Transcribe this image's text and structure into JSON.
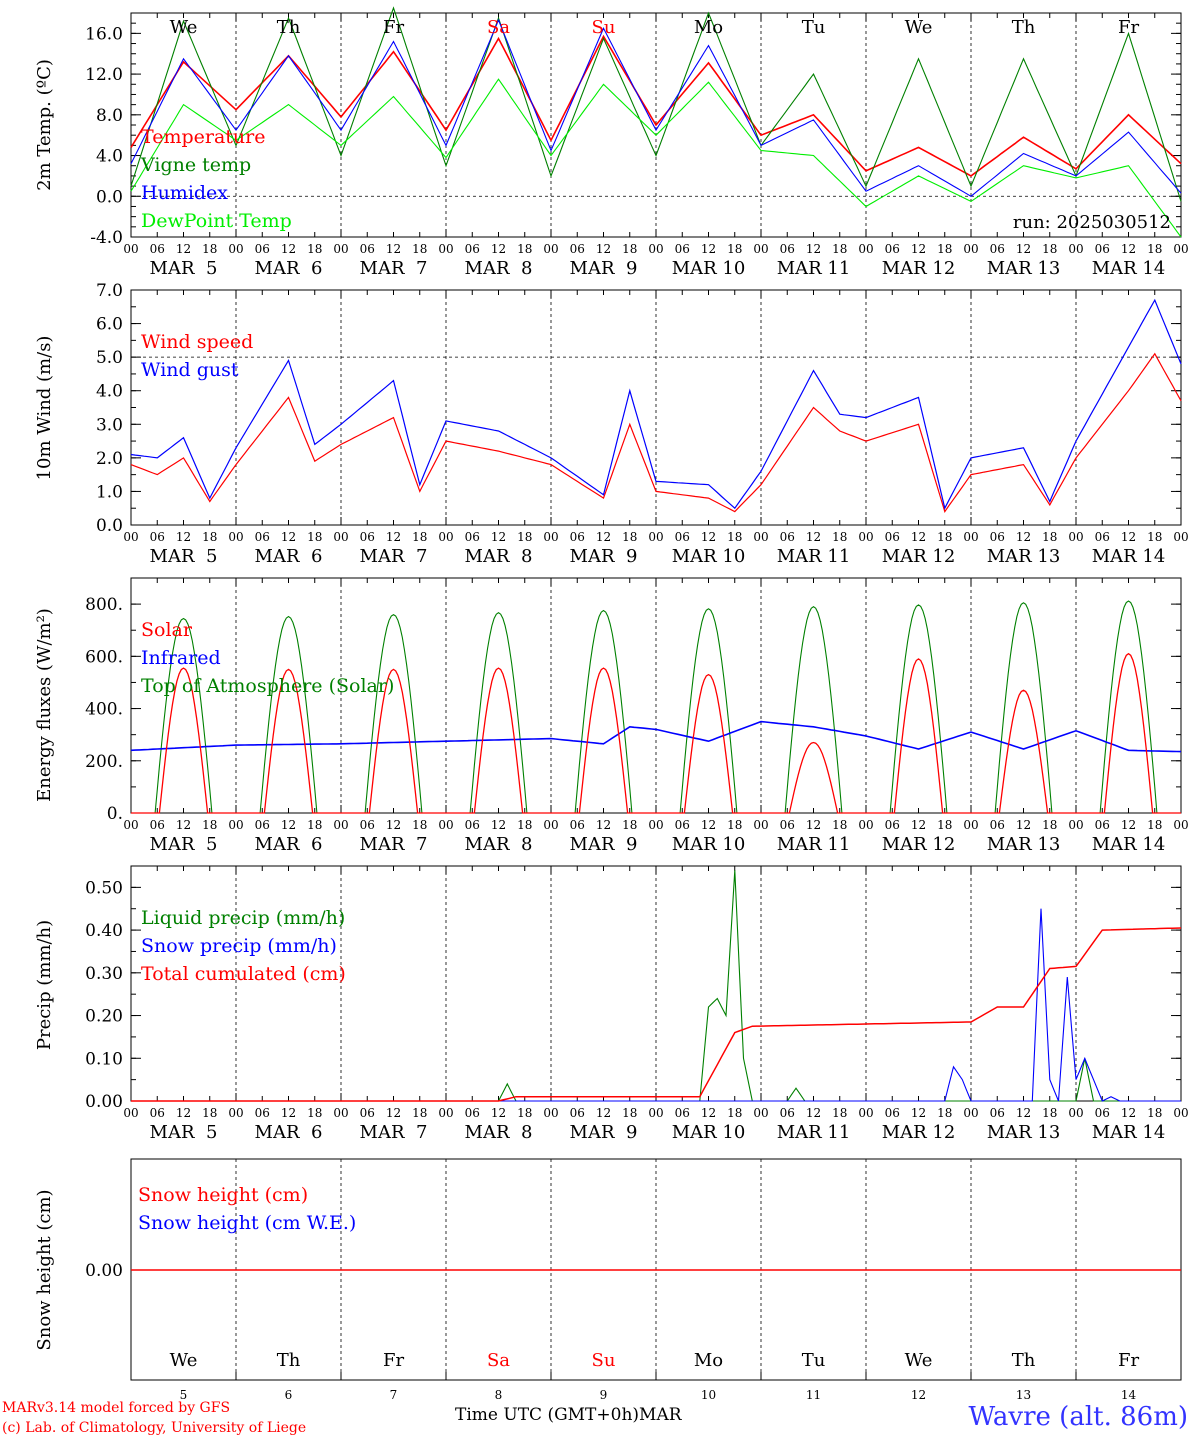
{
  "chart_data": [
    {
      "type": "line",
      "ylabel": "2m Temp. (ºC)",
      "ylim": [
        -4.0,
        18.0
      ],
      "yticks": [
        "-4.0",
        "0.0",
        "4.0",
        "8.0",
        "12.0",
        "16.0"
      ],
      "run_label": "run: 2025030512",
      "x_hours": [
        0,
        12,
        24,
        36,
        48,
        60,
        72,
        84,
        96,
        108,
        120,
        132,
        144,
        156,
        168,
        180,
        192,
        204,
        216,
        228,
        240
      ],
      "series": [
        {
          "name": "Temperature",
          "color": "#ff0000",
          "values": [
            4.8,
            13.2,
            8.5,
            13.8,
            7.8,
            14.2,
            6.5,
            15.5,
            5.5,
            15.7,
            7.0,
            13.1,
            6.0,
            8.0,
            2.5,
            4.8,
            2.0,
            5.8,
            2.7,
            8.0,
            3.2
          ]
        },
        {
          "name": "Vigne temp",
          "color": "#008000",
          "values": [
            1.0,
            17.2,
            5.0,
            17.5,
            4.0,
            18.5,
            3.0,
            17.5,
            2.0,
            15.5,
            4.0,
            18.0,
            5.0,
            12.0,
            1.0,
            13.5,
            1.0,
            13.5,
            2.0,
            16.0,
            -0.5
          ]
        },
        {
          "name": "Humidex",
          "color": "#0000ff",
          "values": [
            3.2,
            13.5,
            6.5,
            13.8,
            6.5,
            15.2,
            5.0,
            17.3,
            4.5,
            16.5,
            6.5,
            14.8,
            5.0,
            7.5,
            0.5,
            3.0,
            0.0,
            4.2,
            2.0,
            6.3,
            0.3
          ]
        },
        {
          "name": "DewPoint Temp",
          "color": "#00ee00",
          "values": [
            0.5,
            9.0,
            5.5,
            9.0,
            5.0,
            9.8,
            3.8,
            11.5,
            4.0,
            11.0,
            6.0,
            11.2,
            4.5,
            4.0,
            -1.0,
            2.0,
            -0.5,
            3.0,
            1.8,
            3.0,
            -4.0
          ]
        }
      ],
      "day_labels": [
        "We",
        "Th",
        "Fr",
        "Sa",
        "Su",
        "Mo",
        "Tu",
        "We",
        "Th",
        "Fr"
      ],
      "day_label_colors": [
        "#000000",
        "#000000",
        "#000000",
        "#ff0000",
        "#ff0000",
        "#000000",
        "#000000",
        "#000000",
        "#000000",
        "#000000"
      ]
    },
    {
      "type": "line",
      "ylabel": "10m Wind (m/s)",
      "ylim": [
        0.0,
        7.0
      ],
      "yticks": [
        "0.0",
        "1.0",
        "2.0",
        "3.0",
        "4.0",
        "5.0",
        "6.0",
        "7.0"
      ],
      "reference_line": 5.0,
      "x_hours": [
        0,
        6,
        12,
        18,
        24,
        36,
        42,
        48,
        60,
        66,
        72,
        84,
        96,
        108,
        114,
        120,
        132,
        138,
        144,
        156,
        162,
        168,
        180,
        186,
        192,
        204,
        210,
        216,
        228,
        234,
        240
      ],
      "series": [
        {
          "name": "Wind speed",
          "color": "#ff0000",
          "values": [
            1.8,
            1.5,
            2.0,
            0.7,
            1.8,
            3.8,
            1.9,
            2.4,
            3.2,
            1.0,
            2.5,
            2.2,
            1.8,
            0.8,
            3.0,
            1.0,
            0.8,
            0.4,
            1.2,
            3.5,
            2.8,
            2.5,
            3.0,
            0.4,
            1.5,
            1.8,
            0.6,
            2.0,
            4.0,
            5.1,
            3.7
          ]
        },
        {
          "name": "Wind gust",
          "color": "#0000ff",
          "values": [
            2.1,
            2.0,
            2.6,
            0.8,
            2.3,
            4.9,
            2.4,
            3.0,
            4.3,
            1.2,
            3.1,
            2.8,
            2.0,
            0.9,
            4.0,
            1.3,
            1.2,
            0.5,
            1.6,
            4.6,
            3.3,
            3.2,
            3.8,
            0.5,
            2.0,
            2.3,
            0.7,
            2.5,
            5.3,
            6.7,
            4.8
          ]
        }
      ]
    },
    {
      "type": "line",
      "ylabel": "Energy fluxes (W/m²)",
      "ylim": [
        0,
        900
      ],
      "yticks": [
        "0.",
        "200.",
        "400.",
        "600.",
        "800."
      ],
      "peak_hour": 12,
      "series": [
        {
          "name": "Solar",
          "color": "#ff0000",
          "daily_peaks": [
            555,
            550,
            550,
            555,
            555,
            530,
            270,
            590,
            470,
            610
          ]
        },
        {
          "name": "Infrared",
          "color": "#0000ff",
          "x_hours": [
            0,
            24,
            48,
            72,
            96,
            108,
            114,
            120,
            132,
            144,
            156,
            168,
            180,
            192,
            204,
            216,
            228,
            240
          ],
          "values": [
            240,
            260,
            265,
            275,
            285,
            265,
            330,
            320,
            275,
            350,
            330,
            295,
            245,
            310,
            245,
            315,
            240,
            235
          ]
        },
        {
          "name": "Top of Atmosphere (Solar)",
          "color": "#008000",
          "daily_peaks": [
            745,
            752,
            760,
            767,
            775,
            782,
            790,
            797,
            805,
            812
          ]
        }
      ]
    },
    {
      "type": "line",
      "ylabel": "Precip (mm/h)",
      "ylim": [
        0.0,
        0.55
      ],
      "yticks": [
        "0.00",
        "0.10",
        "0.20",
        "0.30",
        "0.40",
        "0.50"
      ],
      "series": [
        {
          "name": "Liquid precip (mm/h)",
          "color": "#008000",
          "x_hours": [
            0,
            84,
            86,
            88,
            130,
            132,
            134,
            136,
            138,
            140,
            142,
            150,
            152,
            154,
            216,
            218,
            220,
            240
          ],
          "values": [
            0,
            0,
            0.04,
            0,
            0,
            0.22,
            0.24,
            0.2,
            0.54,
            0.1,
            0,
            0,
            0.03,
            0,
            0,
            0.1,
            0,
            0
          ]
        },
        {
          "name": "Snow precip (mm/h)",
          "color": "#0000ff",
          "x_hours": [
            0,
            186,
            188,
            190,
            192,
            206,
            208,
            210,
            212,
            214,
            216,
            218,
            220,
            222,
            224,
            226,
            240
          ],
          "values": [
            0,
            0,
            0.08,
            0.05,
            0,
            0,
            0.45,
            0.05,
            0,
            0.29,
            0.05,
            0.1,
            0.05,
            0,
            0.01,
            0,
            0
          ]
        },
        {
          "name": "Total cumulated (cm)",
          "color": "#ff0000",
          "x_hours": [
            0,
            84,
            88,
            120,
            130,
            138,
            142,
            192,
            198,
            204,
            210,
            216,
            222,
            240
          ],
          "values": [
            0,
            0,
            0.01,
            0.01,
            0.01,
            0.16,
            0.175,
            0.185,
            0.22,
            0.22,
            0.31,
            0.315,
            0.4,
            0.405
          ]
        }
      ]
    },
    {
      "type": "line",
      "ylabel": "Snow height (cm)",
      "yticks": [
        "0.00"
      ],
      "series": [
        {
          "name": "Snow height (cm)",
          "color": "#ff0000",
          "values": [
            0.0,
            0.0
          ]
        },
        {
          "name": "Snow height (cm W.E.)",
          "color": "#0000ff"
        }
      ],
      "day_labels": [
        "We",
        "Th",
        "Fr",
        "Sa",
        "Su",
        "Mo",
        "Tu",
        "We",
        "Th",
        "Fr"
      ],
      "day_label_colors": [
        "#000000",
        "#000000",
        "#000000",
        "#ff0000",
        "#ff0000",
        "#000000",
        "#000000",
        "#000000",
        "#000000",
        "#000000"
      ],
      "day_numbers": [
        "5",
        "6",
        "7",
        "8",
        "9",
        "10",
        "11",
        "12",
        "13",
        "14"
      ]
    }
  ],
  "x_hour_labels": [
    "00",
    "06",
    "12",
    "18"
  ],
  "x_date_labels": [
    "MAR  5",
    "MAR  6",
    "MAR  7",
    "MAR  8",
    "MAR  9",
    "MAR 10",
    "MAR 11",
    "MAR 12",
    "MAR 13",
    "MAR 14"
  ],
  "footer": {
    "credit_line1": "MARv3.14 model forced by GFS",
    "credit_line2": "(c) Lab. of Climatology, University of Liege",
    "xaxis_title": "Time UTC (GMT+0h)MAR",
    "station": "Wavre (alt. 86m)"
  }
}
